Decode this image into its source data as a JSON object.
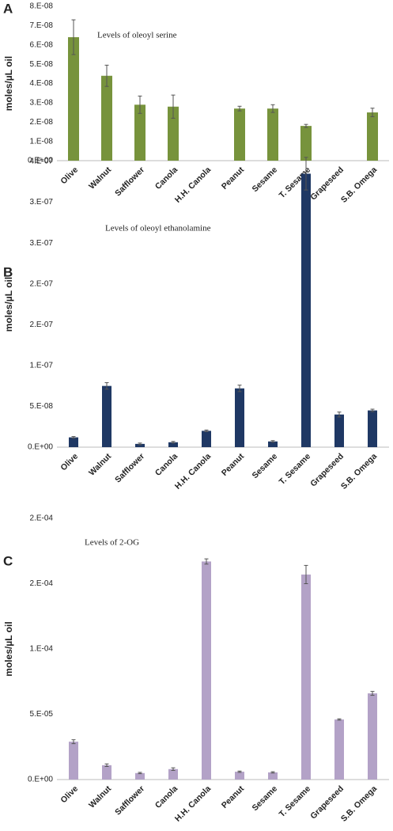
{
  "chart_data": [
    {
      "type": "bar",
      "panel_label": "A",
      "title": "Levels of oleoyl serine",
      "y_label": "moles/µL oil",
      "color": "#77933c",
      "categories": [
        "Olive",
        "Walnut",
        "Safflower",
        "Canola",
        "H.H. Canola",
        "Peanut",
        "Sesame",
        "T. Sesame",
        "Grapeseed",
        "S.B. Omega"
      ],
      "values": [
        6.4e-08,
        4.4e-08,
        2.9e-08,
        2.8e-08,
        null,
        2.7e-08,
        2.7e-08,
        1.8e-08,
        null,
        2.5e-08
      ],
      "errors": [
        9e-09,
        5.5e-09,
        4.5e-09,
        6e-09,
        null,
        1.2e-09,
        2e-09,
        8e-10,
        null,
        2.2e-09
      ],
      "ylim": [
        0,
        8e-08
      ],
      "yticks": [
        {
          "value": 0,
          "label": "0.E+00"
        },
        {
          "value": 1e-08,
          "label": "1.E-08"
        },
        {
          "value": 2e-08,
          "label": "2.E-08"
        },
        {
          "value": 3e-08,
          "label": "3.E-08"
        },
        {
          "value": 4e-08,
          "label": "4.E-08"
        },
        {
          "value": 5e-08,
          "label": "5.E-08"
        },
        {
          "value": 6e-08,
          "label": "6.E-08"
        },
        {
          "value": 7e-08,
          "label": "7.E-08"
        },
        {
          "value": 8e-08,
          "label": "8.E-08"
        }
      ],
      "grid": false
    },
    {
      "type": "bar",
      "panel_label": "B",
      "title": "Levels of oleoyl ethanolamine",
      "y_label": "moles/µL oil",
      "color": "#1f3864",
      "categories": [
        "Olive",
        "Walnut",
        "Safflower",
        "Canola",
        "H.H. Canola",
        "Peanut",
        "Sesame",
        "T. Sesame",
        "Grapeseed",
        "S.B. Omega"
      ],
      "values": [
        1.2e-08,
        7.5e-08,
        4e-09,
        6e-09,
        2e-08,
        7.2e-08,
        7e-09,
        3.35e-07,
        4e-08,
        4.5e-08
      ],
      "errors": [
        1e-09,
        4e-09,
        1e-09,
        1e-09,
        1e-09,
        4e-09,
        1e-09,
        2e-08,
        3e-09,
        1.5e-09
      ],
      "ylim": [
        0,
        3.5e-07
      ],
      "yticks": [
        {
          "value": 0,
          "label": "0.E+00"
        },
        {
          "value": 5e-08,
          "label": "5.E-08"
        },
        {
          "value": 1e-07,
          "label": "1.E-07"
        },
        {
          "value": 1.5e-07,
          "label": "2.E-07"
        },
        {
          "value": 2e-07,
          "label": "2.E-07"
        },
        {
          "value": 2.5e-07,
          "label": "3.E-07"
        },
        {
          "value": 3e-07,
          "label": "3.E-07"
        },
        {
          "value": 3.5e-07,
          "label": "4.E-07"
        }
      ],
      "grid": false
    },
    {
      "type": "bar",
      "panel_label": "C",
      "title": "Levels of 2-OG",
      "y_label": "moles/µL oil",
      "color": "#b3a2c7",
      "categories": [
        "Olive",
        "Walnut",
        "Safflower",
        "Canola",
        "H.H. Canola",
        "Peanut",
        "Sesame",
        "T. Sesame",
        "Grapeseed",
        "S.B. Omega"
      ],
      "values": [
        2.9e-05,
        1.1e-05,
        5e-06,
        8e-06,
        0.000167,
        6e-06,
        5.5e-06,
        0.000157,
        4.6e-05,
        6.6e-05
      ],
      "errors": [
        1.5e-06,
        1e-06,
        5e-07,
        1e-06,
        2e-06,
        5e-07,
        5e-07,
        7e-06,
        5e-07,
        1.5e-06
      ],
      "ylim": [
        0,
        0.0002
      ],
      "yticks": [
        {
          "value": 0,
          "label": "0.E+00"
        },
        {
          "value": 5e-05,
          "label": "5.E-05"
        },
        {
          "value": 0.0001,
          "label": "1.E-04"
        },
        {
          "value": 0.00015,
          "label": "2.E-04"
        },
        {
          "value": 0.0002,
          "label": "2.E-04"
        }
      ],
      "grid": false
    }
  ]
}
